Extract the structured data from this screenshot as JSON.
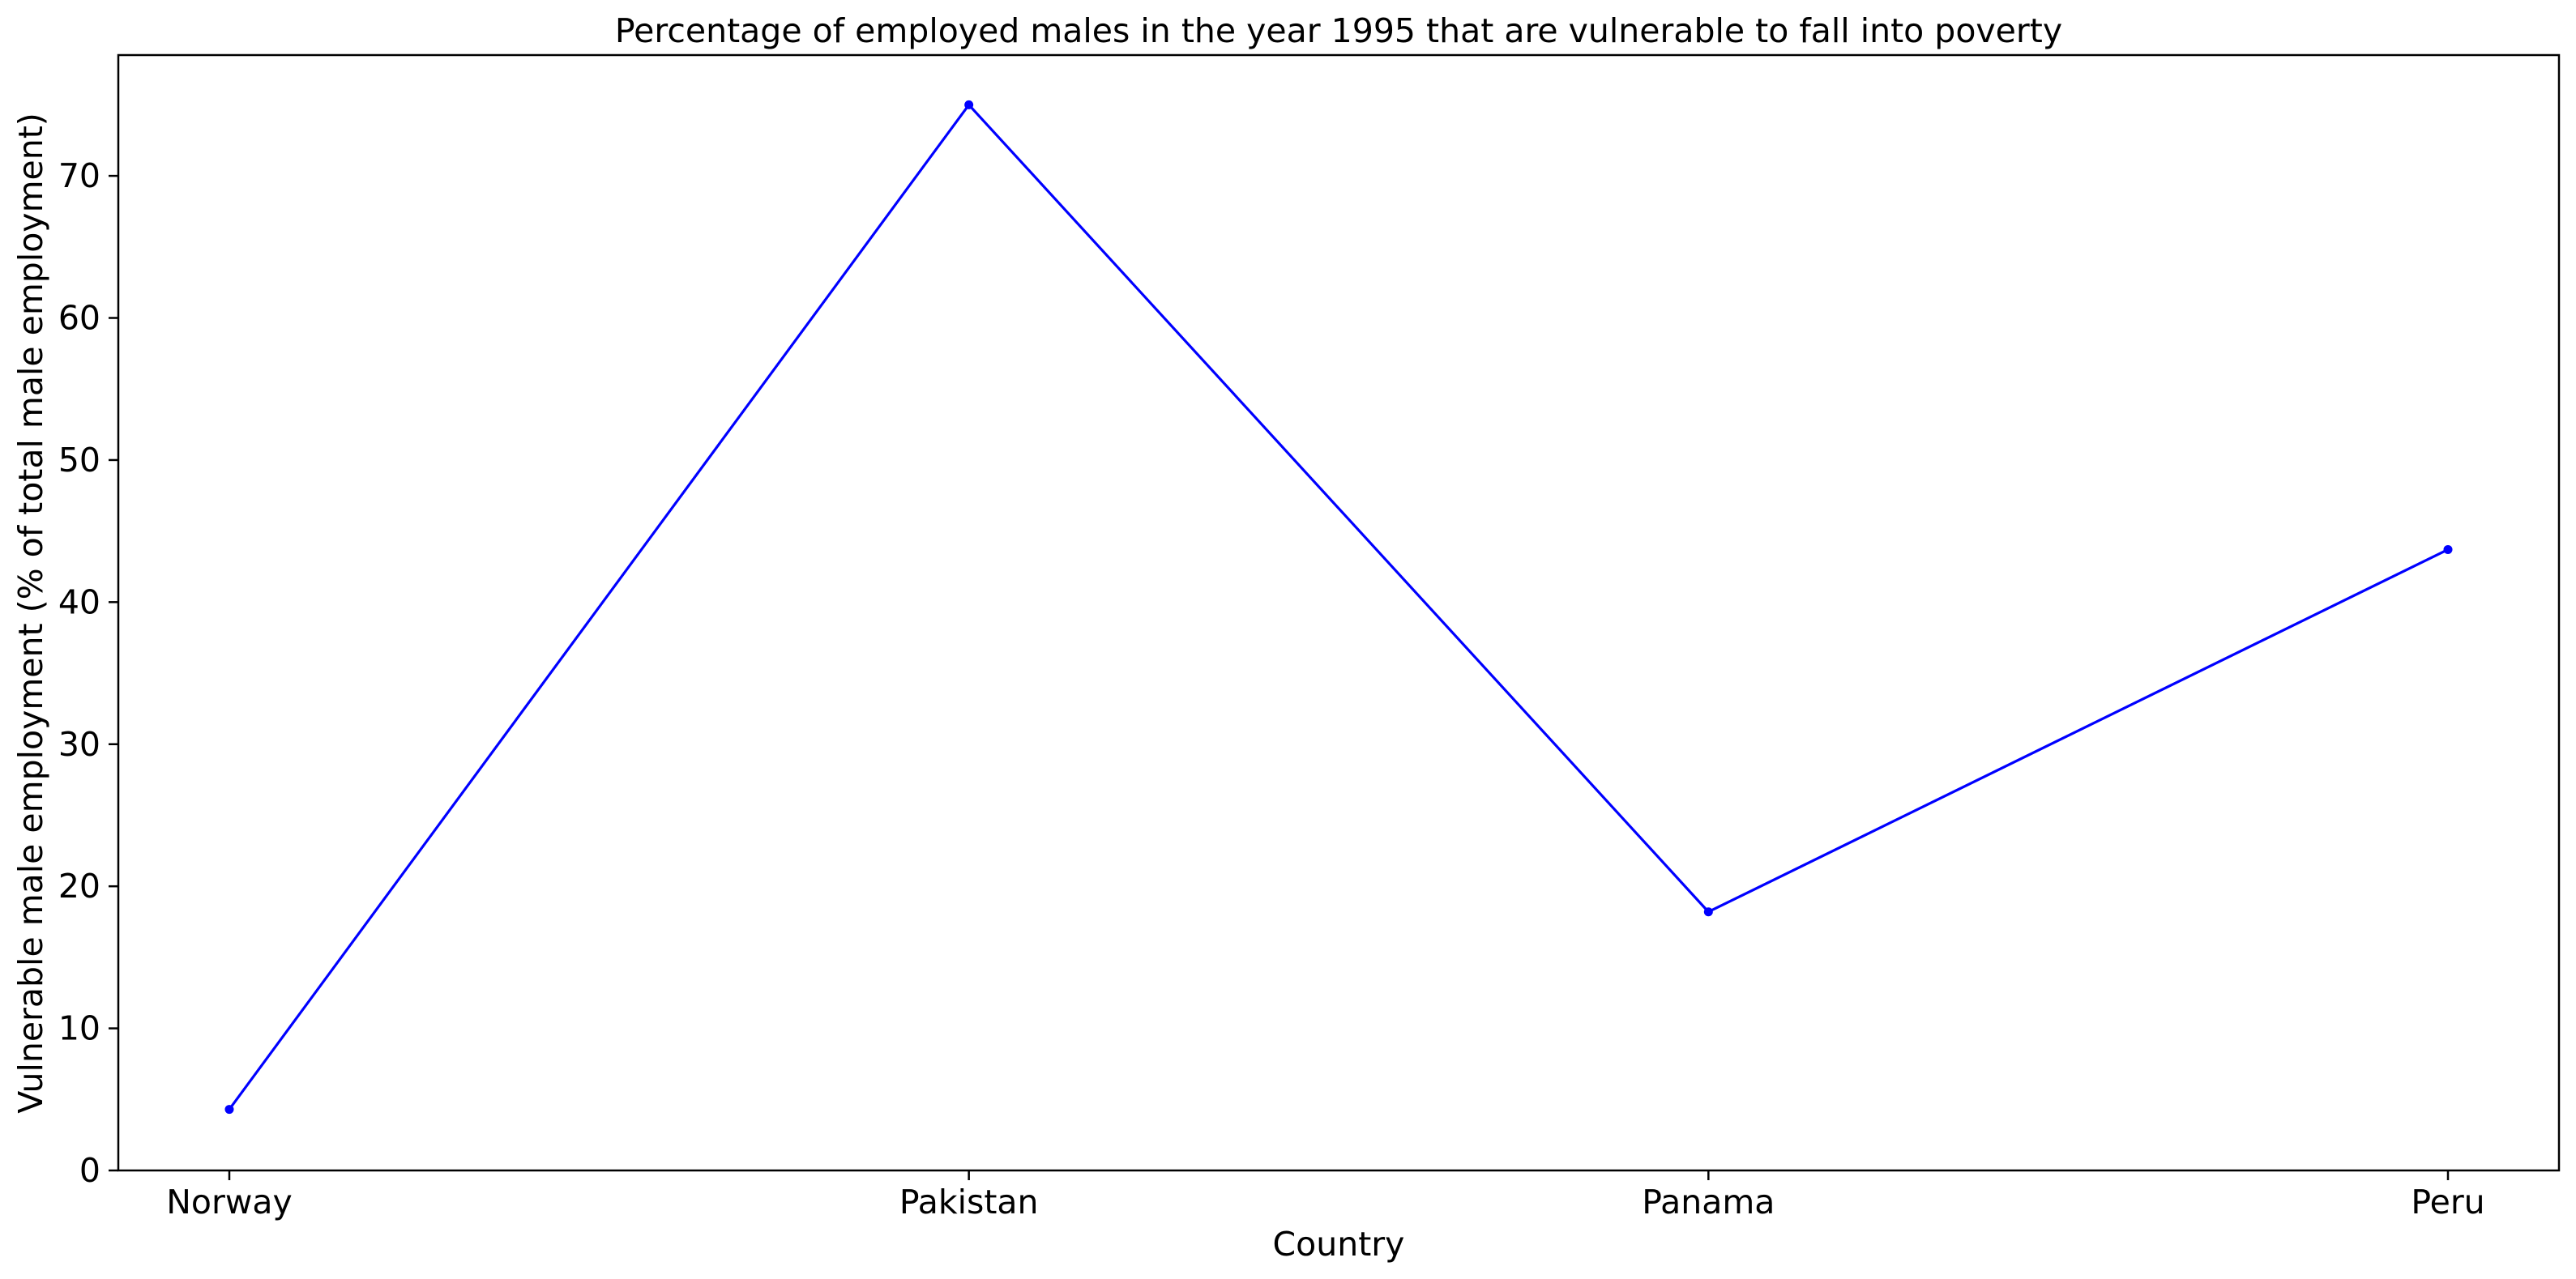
{
  "chart_data": {
    "type": "line",
    "title": "Percentage of employed males in the year 1995 that are vulnerable to fall into poverty",
    "xlabel": "Country",
    "ylabel": "Vulnerable male employment (% of total male employment)",
    "categories": [
      "Norway",
      "Pakistan",
      "Panama",
      "Peru"
    ],
    "series": [
      {
        "values": [
          4.3,
          75.0,
          18.2,
          43.7
        ],
        "color": "#0000ff",
        "marker": "point"
      }
    ],
    "ylim": [
      0,
      78.5
    ],
    "yticks": [
      0,
      10,
      20,
      30,
      40,
      50,
      60,
      70
    ],
    "grid": false,
    "legend": "none"
  }
}
